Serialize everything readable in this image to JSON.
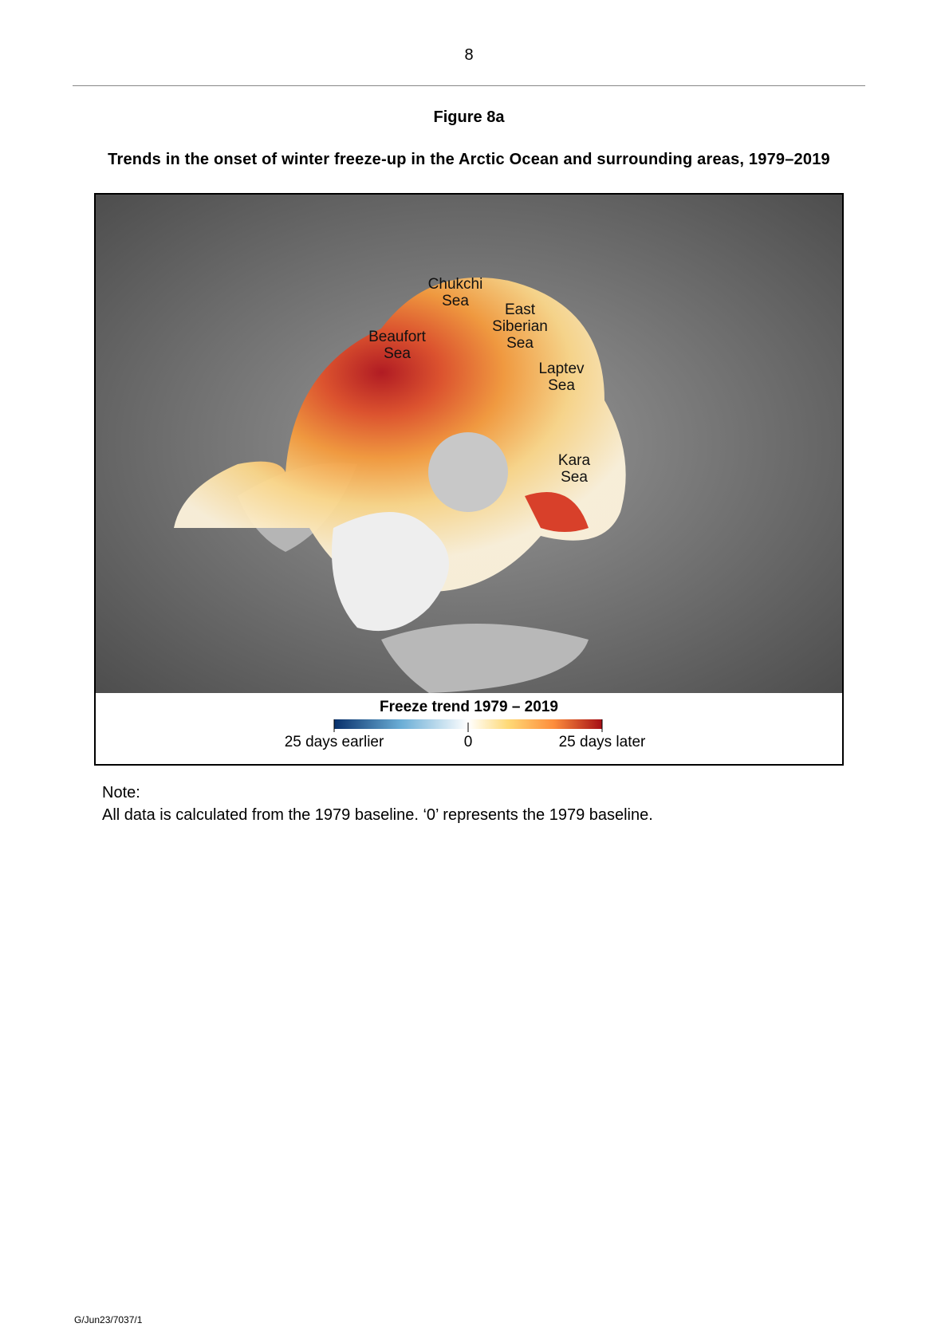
{
  "header": {
    "page_number": "8"
  },
  "figure": {
    "label": "Figure 8a",
    "caption": "Trends in the onset of winter freeze-up in the Arctic Ocean and surrounding areas, 1979–2019"
  },
  "map": {
    "labels": [
      {
        "lines": [
          "Chukchi",
          "Sea"
        ]
      },
      {
        "lines": [
          "East",
          "Siberian",
          "Sea"
        ]
      },
      {
        "lines": [
          "Beaufort",
          "Sea"
        ]
      },
      {
        "lines": [
          "Laptev",
          "Sea"
        ]
      },
      {
        "lines": [
          "Kara",
          "Sea"
        ]
      }
    ]
  },
  "legend": {
    "title": "Freeze trend 1979 – 2019",
    "labels": [
      "25 days earlier",
      "0",
      "25 days later"
    ]
  },
  "note": {
    "heading": "Note:",
    "text": "All data is calculated from the 1979 baseline.  ‘0’ represents the 1979 baseline."
  },
  "footer": {
    "code": "G/Jun23/7037/1"
  }
}
